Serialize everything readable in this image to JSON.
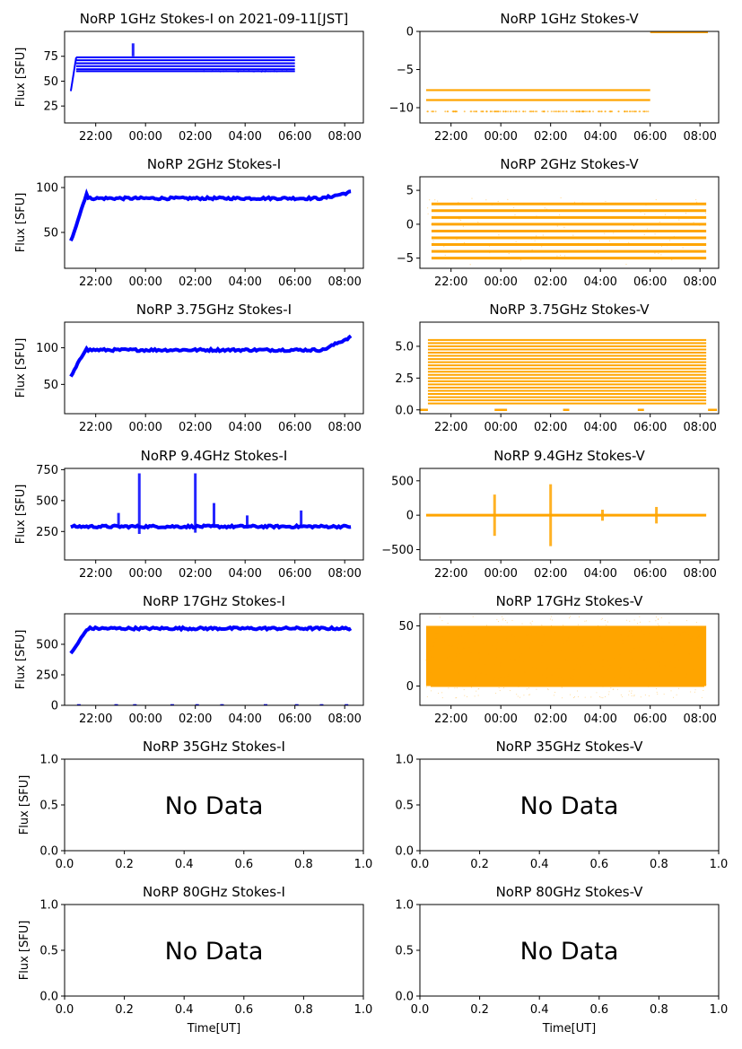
{
  "figure": {
    "time_ticks": [
      "22:00",
      "00:00",
      "02:00",
      "04:00",
      "06:00",
      "08:00"
    ],
    "ylabel": "Flux [SFU]",
    "xlabel": "Time[UT]",
    "nodata_text": "No Data",
    "color_I": "#0000ff",
    "color_V": "#ffa500"
  },
  "chart_data": [
    {
      "type": "scatter",
      "title": "NoRP 1GHz Stokes-I on 2021-09-11[JST]",
      "ylabel": "Flux [SFU]",
      "xlabel": "",
      "x_start": "20:45",
      "x_end": "08:45",
      "ylim": [
        8,
        100
      ],
      "yticks": [
        25,
        50,
        75
      ],
      "series": [
        {
          "x_start": "21:00",
          "x_end": "06:00",
          "levels": [
            60,
            62,
            65,
            68,
            71,
            74
          ],
          "startup_from": 40
        }
      ],
      "spikes": [
        {
          "x": "23:30",
          "low": 75,
          "high": 88
        }
      ]
    },
    {
      "type": "scatter",
      "title": "NoRP 1GHz Stokes-V",
      "ylabel": "",
      "xlabel": "",
      "x_start": "20:45",
      "x_end": "08:45",
      "ylim": [
        -12,
        0
      ],
      "yticks": [
        -10,
        -5,
        0
      ],
      "series": [
        {
          "x_start": "21:00",
          "x_end": "06:00",
          "levels": [
            -7.7,
            -9
          ]
        }
      ],
      "scatter_level": -10.5,
      "post_level": 0
    },
    {
      "type": "scatter",
      "title": "NoRP 2GHz Stokes-I",
      "ylabel": "Flux [SFU]",
      "xlabel": "",
      "x_start": "20:45",
      "x_end": "08:45",
      "ylim": [
        10,
        112
      ],
      "yticks": [
        50,
        100
      ],
      "series": [
        {
          "x_start": "21:00",
          "x_end": "08:15",
          "start_value": 40,
          "peak_value": 97,
          "plateau": 88,
          "end_value": 95
        }
      ]
    },
    {
      "type": "scatter",
      "title": "NoRP 2GHz Stokes-V",
      "ylabel": "",
      "xlabel": "",
      "x_start": "20:45",
      "x_end": "08:45",
      "ylim": [
        -6.5,
        7
      ],
      "yticks": [
        -5,
        0,
        5
      ],
      "series": [
        {
          "x_start": "21:00",
          "x_end": "08:15",
          "levels": [
            -5,
            -4,
            -3,
            -2,
            -1,
            0,
            1,
            2,
            3
          ]
        }
      ]
    },
    {
      "type": "scatter",
      "title": "NoRP 3.75GHz Stokes-I",
      "ylabel": "Flux [SFU]",
      "xlabel": "",
      "x_start": "20:45",
      "x_end": "08:45",
      "ylim": [
        10,
        135
      ],
      "yticks": [
        50,
        100
      ],
      "series": [
        {
          "x_start": "21:00",
          "x_end": "08:15",
          "start_value": 60,
          "peak_value": 103,
          "plateau": 97,
          "end_value": 115
        }
      ]
    },
    {
      "type": "scatter",
      "title": "NoRP 3.75GHz Stokes-V",
      "ylabel": "",
      "xlabel": "",
      "x_start": "20:45",
      "x_end": "08:45",
      "ylim": [
        -0.3,
        6.9
      ],
      "yticks": [
        0.0,
        2.5,
        5.0
      ],
      "series": [
        {
          "x_start": "21:00",
          "x_end": "08:15",
          "level_min": 0.5,
          "level_max": 5.5,
          "level_step": 0.25
        }
      ]
    },
    {
      "type": "scatter",
      "title": "NoRP 9.4GHz Stokes-I",
      "ylabel": "Flux [SFU]",
      "xlabel": "",
      "x_start": "20:45",
      "x_end": "08:45",
      "ylim": [
        20,
        760
      ],
      "yticks": [
        250,
        500,
        750
      ],
      "series": [
        {
          "x_start": "21:00",
          "x_end": "08:15",
          "plateau": 290
        }
      ],
      "spikes": [
        {
          "x": "23:45",
          "low": 230,
          "high": 720
        },
        {
          "x": "02:00",
          "low": 240,
          "high": 720
        },
        {
          "x": "02:45",
          "low": 280,
          "high": 480
        },
        {
          "x": "04:05",
          "low": 280,
          "high": 380
        },
        {
          "x": "06:15",
          "low": 280,
          "high": 420
        },
        {
          "x": "22:55",
          "low": 290,
          "high": 400
        }
      ]
    },
    {
      "type": "scatter",
      "title": "NoRP 9.4GHz Stokes-V",
      "ylabel": "",
      "xlabel": "",
      "x_start": "20:45",
      "x_end": "08:45",
      "ylim": [
        -650,
        680
      ],
      "yticks": [
        -500,
        0,
        500
      ],
      "series": [
        {
          "x_start": "21:00",
          "x_end": "08:15",
          "level": 0
        }
      ],
      "spikes": [
        {
          "x": "23:45",
          "low": -300,
          "high": 300
        },
        {
          "x": "02:00",
          "low": -450,
          "high": 450
        },
        {
          "x": "04:05",
          "low": -80,
          "high": 80
        },
        {
          "x": "06:15",
          "low": -120,
          "high": 120
        }
      ]
    },
    {
      "type": "scatter",
      "title": "NoRP 17GHz Stokes-I",
      "ylabel": "Flux [SFU]",
      "xlabel": "",
      "x_start": "20:45",
      "x_end": "08:45",
      "ylim": [
        0,
        750
      ],
      "yticks": [
        0,
        250,
        500
      ],
      "series": [
        {
          "x_start": "21:00",
          "x_end": "08:15",
          "plateau": 630,
          "start_value": 420
        }
      ],
      "zero_points": true
    },
    {
      "type": "scatter",
      "title": "NoRP 17GHz Stokes-V",
      "ylabel": "",
      "xlabel": "",
      "x_start": "20:45",
      "x_end": "08:45",
      "ylim": [
        -16,
        60
      ],
      "yticks": [
        0,
        50
      ],
      "series": [
        {
          "x_start": "21:00",
          "x_end": "08:15",
          "low": 0,
          "high": 50
        }
      ]
    },
    {
      "type": "empty",
      "title": "NoRP 35GHz Stokes-I",
      "ylabel": "Flux [SFU]",
      "xlabel": "",
      "xlim": [
        0,
        1
      ],
      "ylim": [
        0,
        1
      ],
      "xticks": [
        "0.0",
        "0.2",
        "0.4",
        "0.6",
        "0.8",
        "1.0"
      ],
      "yticks": [
        "0.0",
        "0.5",
        "1.0"
      ]
    },
    {
      "type": "empty",
      "title": "NoRP 35GHz Stokes-V",
      "ylabel": "",
      "xlabel": "",
      "xlim": [
        0,
        1
      ],
      "ylim": [
        0,
        1
      ],
      "xticks": [
        "0.0",
        "0.2",
        "0.4",
        "0.6",
        "0.8",
        "1.0"
      ],
      "yticks": [
        "0.0",
        "0.5",
        "1.0"
      ]
    },
    {
      "type": "empty",
      "title": "NoRP 80GHz Stokes-I",
      "ylabel": "Flux [SFU]",
      "xlabel": "Time[UT]",
      "xlim": [
        0,
        1
      ],
      "ylim": [
        0,
        1
      ],
      "xticks": [
        "0.0",
        "0.2",
        "0.4",
        "0.6",
        "0.8",
        "1.0"
      ],
      "yticks": [
        "0.0",
        "0.5",
        "1.0"
      ]
    },
    {
      "type": "empty",
      "title": "NoRP 80GHz Stokes-V",
      "ylabel": "",
      "xlabel": "Time[UT]",
      "xlim": [
        0,
        1
      ],
      "ylim": [
        0,
        1
      ],
      "xticks": [
        "0.0",
        "0.2",
        "0.4",
        "0.6",
        "0.8",
        "1.0"
      ],
      "yticks": [
        "0.0",
        "0.5",
        "1.0"
      ]
    }
  ]
}
